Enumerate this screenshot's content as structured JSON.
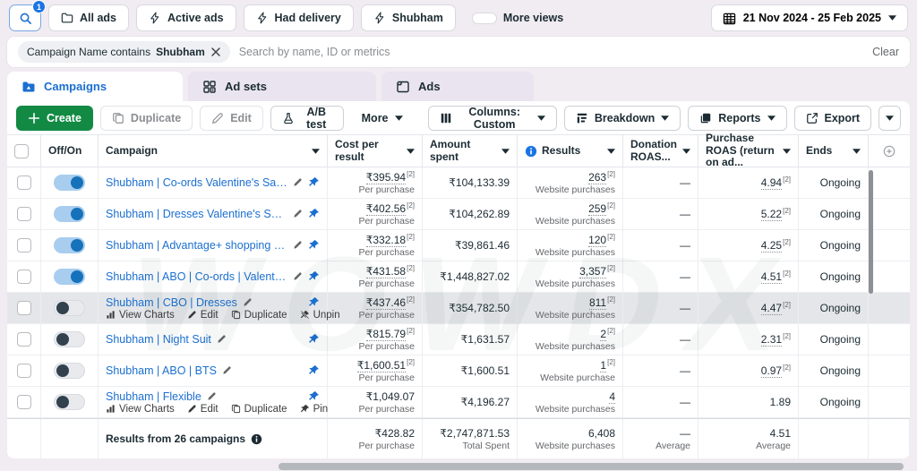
{
  "watermark": "WOWDX",
  "toolbar": {
    "search_badge": "1",
    "views": [
      {
        "icon": "folder",
        "label": "All ads"
      },
      {
        "icon": "bolt",
        "label": "Active ads"
      },
      {
        "icon": "bolt",
        "label": "Had delivery"
      },
      {
        "icon": "bolt",
        "label": "Shubham"
      }
    ],
    "more_views_label": "More views",
    "date_range": "21 Nov 2024 - 25 Feb 2025"
  },
  "filter_bar": {
    "chip_prefix": "Campaign Name contains",
    "chip_value": "Shubham",
    "search_placeholder": "Search by name, ID or metrics",
    "clear_label": "Clear"
  },
  "tabs": [
    {
      "id": "campaigns",
      "label": "Campaigns",
      "icon": "folder-filled",
      "active": true
    },
    {
      "id": "adsets",
      "label": "Ad sets",
      "icon": "grid",
      "active": false
    },
    {
      "id": "ads",
      "label": "Ads",
      "icon": "frame",
      "active": false
    }
  ],
  "actions": {
    "create": "Create",
    "duplicate": "Duplicate",
    "edit": "Edit",
    "ab_test": "A/B test",
    "more": "More",
    "columns": "Columns: Custom",
    "breakdown": "Breakdown",
    "reports": "Reports",
    "export": "Export"
  },
  "table": {
    "headers": {
      "off_on": "Off/On",
      "campaign": "Campaign",
      "cost_per_result": "Cost per result",
      "amount_spent": "Amount spent",
      "results": "Results",
      "donation_roas": "Donation ROAS...",
      "purchase_roas": "Purchase ROAS (return on ad...",
      "ends": "Ends"
    },
    "rows": [
      {
        "name": "Shubham | Co-ords Valentine's Sales | CBO",
        "toggle": "on",
        "pinned": true,
        "editable_name": false,
        "hovered": false,
        "hover_actions": [],
        "cost": {
          "v": "₹395.94",
          "sup": "[2]",
          "sub": "Per purchase",
          "u": true
        },
        "spent": {
          "v": "₹104,133.39"
        },
        "results": {
          "v": "263",
          "sup": "[2]",
          "sub": "Website purchases",
          "u": true
        },
        "donation": {
          "v": "—"
        },
        "roas": {
          "v": "4.94",
          "sup": "[2]",
          "u": true
        },
        "ends": "Ongoing"
      },
      {
        "name": "Shubham | Dresses Valentine's Sales | CBO",
        "toggle": "on",
        "pinned": true,
        "editable_name": false,
        "hovered": false,
        "hover_actions": [],
        "cost": {
          "v": "₹402.56",
          "sup": "[2]",
          "sub": "Per purchase",
          "u": true
        },
        "spent": {
          "v": "₹104,262.89"
        },
        "results": {
          "v": "259",
          "sup": "[2]",
          "sub": "Website purchases",
          "u": true
        },
        "donation": {
          "v": "—"
        },
        "roas": {
          "v": "5.22",
          "sup": "[2]",
          "u": true
        },
        "ends": "Ongoing"
      },
      {
        "name": "Shubham | Advantage+ shopping Campaign",
        "toggle": "on",
        "pinned": true,
        "editable_name": false,
        "hovered": false,
        "hover_actions": [],
        "cost": {
          "v": "₹332.18",
          "sup": "[2]",
          "sub": "Per purchase",
          "u": true
        },
        "spent": {
          "v": "₹39,861.46"
        },
        "results": {
          "v": "120",
          "sup": "[2]",
          "sub": "Website purchases",
          "u": true
        },
        "donation": {
          "v": "—"
        },
        "roas": {
          "v": "4.25",
          "sup": "[2]",
          "u": true
        },
        "ends": "Ongoing"
      },
      {
        "name": "Shubham | ABO | Co-ords | Valentine",
        "toggle": "on",
        "pinned": true,
        "editable_name": false,
        "hovered": false,
        "hover_actions": [],
        "cost": {
          "v": "₹431.58",
          "sup": "[2]",
          "sub": "Per purchase",
          "u": true
        },
        "spent": {
          "v": "₹1,448,827.02"
        },
        "results": {
          "v": "3,357",
          "sup": "[2]",
          "sub": "Website purchases",
          "u": true
        },
        "donation": {
          "v": "—"
        },
        "roas": {
          "v": "4.51",
          "sup": "[2]",
          "u": true
        },
        "ends": "Ongoing"
      },
      {
        "name": "Shubham | CBO | Dresses",
        "toggle": "off",
        "pinned": true,
        "editable_name": true,
        "hovered": true,
        "hover_actions": [
          {
            "icon": "chart",
            "label": "View Charts"
          },
          {
            "icon": "pencil",
            "label": "Edit"
          },
          {
            "icon": "copy",
            "label": "Duplicate"
          },
          {
            "icon": "unpin",
            "label": "Unpin"
          }
        ],
        "cost": {
          "v": "₹437.46",
          "sup": "[2]",
          "sub": "Per purchase",
          "u": true
        },
        "spent": {
          "v": "₹354,782.50"
        },
        "results": {
          "v": "811",
          "sup": "[2]",
          "sub": "Website purchases",
          "u": true
        },
        "donation": {
          "v": "—"
        },
        "roas": {
          "v": "4.47",
          "sup": "[2]",
          "u": true
        },
        "ends": "Ongoing"
      },
      {
        "name": "Shubham | Night Suit",
        "toggle": "off",
        "pinned": false,
        "editable_name": false,
        "hovered": false,
        "hover_actions": [],
        "cost": {
          "v": "₹815.79",
          "sup": "[2]",
          "sub": "Per purchase",
          "u": true
        },
        "spent": {
          "v": "₹1,631.57"
        },
        "results": {
          "v": "2",
          "sup": "[2]",
          "sub": "Website purchases",
          "u": true
        },
        "donation": {
          "v": "—"
        },
        "roas": {
          "v": "2.31",
          "sup": "[2]",
          "u": true
        },
        "ends": "Ongoing"
      },
      {
        "name": "Shubham | ABO | BTS",
        "toggle": "off",
        "pinned": false,
        "editable_name": false,
        "hovered": false,
        "hover_actions": [],
        "cost": {
          "v": "₹1,600.51",
          "sup": "[2]",
          "sub": "Per purchase",
          "u": true
        },
        "spent": {
          "v": "₹1,600.51"
        },
        "results": {
          "v": "1",
          "sup": "[2]",
          "sub": "Website purchase",
          "u": true
        },
        "donation": {
          "v": "—"
        },
        "roas": {
          "v": "0.97",
          "sup": "[2]",
          "u": true
        },
        "ends": "Ongoing"
      },
      {
        "name": "Shubham | Flexible",
        "toggle": "off",
        "pinned": false,
        "editable_name": false,
        "hovered": false,
        "hover_actions": [
          {
            "icon": "chart",
            "label": "View Charts"
          },
          {
            "icon": "pencil",
            "label": "Edit"
          },
          {
            "icon": "copy",
            "label": "Duplicate"
          },
          {
            "icon": "pin",
            "label": "Pin"
          }
        ],
        "cost": {
          "v": "₹1,049.07",
          "sub": "Per purchase",
          "u": false
        },
        "spent": {
          "v": "₹4,196.27"
        },
        "results": {
          "v": "4",
          "sub": "Website purchases",
          "u": true
        },
        "donation": {
          "v": "—"
        },
        "roas": {
          "v": "1.89",
          "u": false
        },
        "ends": "Ongoing"
      }
    ],
    "summary": {
      "label": "Results from 26 campaigns",
      "cost": {
        "v": "₹428.82",
        "sub": "Per purchase"
      },
      "spent": {
        "v": "₹2,747,871.53",
        "sub": "Total Spent"
      },
      "results": {
        "v": "6,408",
        "sub": "Website purchases"
      },
      "donation": {
        "v": "—",
        "sub": "Average"
      },
      "roas": {
        "v": "4.51",
        "sub": "Average"
      }
    }
  }
}
